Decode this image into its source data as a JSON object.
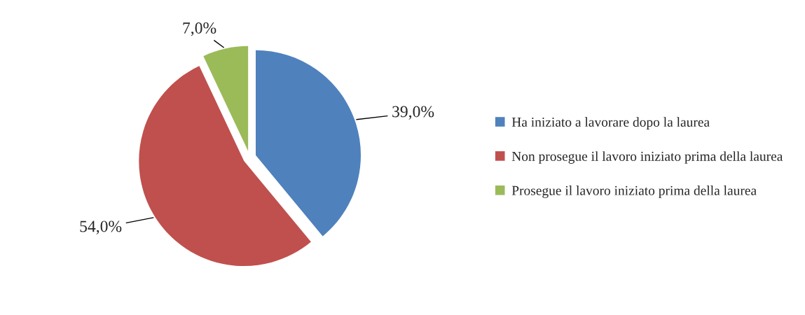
{
  "chart_data": {
    "type": "pie",
    "categories": [
      "Ha iniziato a lavorare dopo la laurea",
      "Non prosegue il lavoro iniziato prima della laurea",
      "Prosegue il lavoro iniziato prima della laurea"
    ],
    "values": [
      39.0,
      54.0,
      7.0
    ],
    "colors": [
      "#4f81bd",
      "#c0504d",
      "#9bbb59"
    ],
    "value_labels": [
      "39,0%",
      "54,0%",
      "7,0%"
    ],
    "legend": "right"
  }
}
